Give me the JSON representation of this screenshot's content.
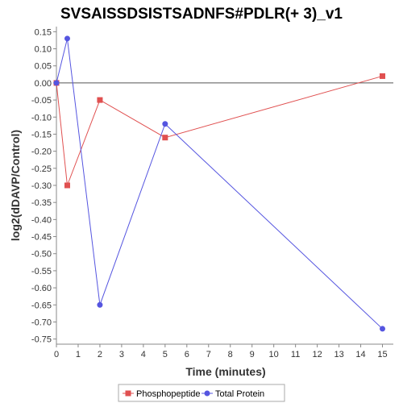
{
  "chart_data": {
    "type": "line",
    "title": "SVSAISSDSISTSADNFS#PDLR(+ 3)_v1",
    "xlabel": "Time (minutes)",
    "ylabel": "log2(dDAVP/Control)",
    "xlim": [
      0,
      15.5
    ],
    "ylim": [
      -0.765,
      0.165
    ],
    "x_ticks": [
      0,
      1,
      2,
      3,
      4,
      5,
      6,
      7,
      8,
      9,
      10,
      11,
      12,
      13,
      14,
      15
    ],
    "y_ticks": [
      0.15,
      0.1,
      0.05,
      0.0,
      -0.05,
      -0.1,
      -0.15,
      -0.2,
      -0.25,
      -0.3,
      -0.35,
      -0.4,
      -0.45,
      -0.5,
      -0.55,
      -0.6,
      -0.65,
      -0.7,
      -0.75
    ],
    "x_tick_labels": [
      "0",
      "1",
      "2",
      "3",
      "4",
      "5",
      "6",
      "7",
      "8",
      "9",
      "10",
      "11",
      "12",
      "13",
      "14",
      "15"
    ],
    "y_tick_labels": [
      "0.15",
      "0.10",
      "0.05",
      "0.00",
      "-0.05",
      "-0.10",
      "-0.15",
      "-0.20",
      "-0.25",
      "-0.30",
      "-0.35",
      "-0.40",
      "-0.45",
      "-0.50",
      "-0.55",
      "-0.60",
      "-0.65",
      "-0.70",
      "-0.75"
    ],
    "zero_line": 0,
    "grid": false,
    "legend_position": "bottom-center",
    "series": [
      {
        "name": "Phosphopeptide",
        "color": "#e05050",
        "marker": "square",
        "x": [
          0,
          0.5,
          2,
          5,
          15
        ],
        "y": [
          0.0,
          -0.3,
          -0.05,
          -0.16,
          0.02
        ]
      },
      {
        "name": "Total Protein",
        "color": "#5555e0",
        "marker": "circle",
        "x": [
          0,
          0.5,
          2,
          5,
          15
        ],
        "y": [
          0.0,
          0.13,
          -0.65,
          -0.12,
          -0.72
        ]
      }
    ]
  }
}
